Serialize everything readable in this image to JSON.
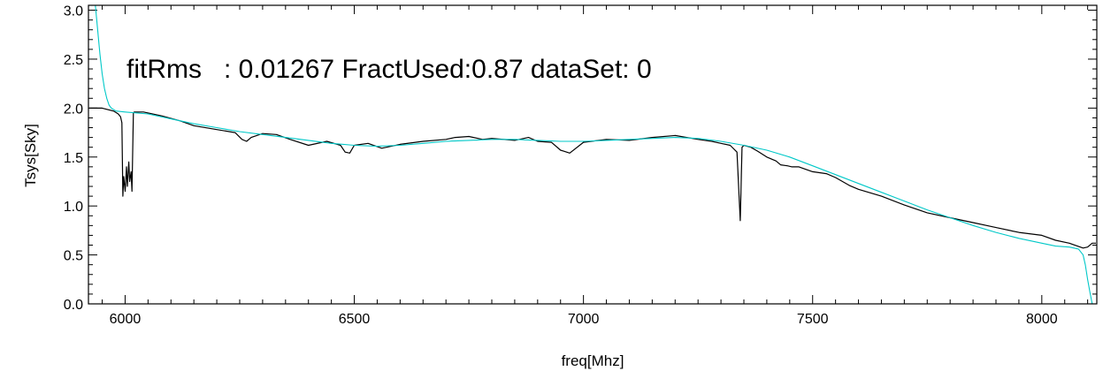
{
  "chart_data": {
    "type": "line",
    "title": "",
    "annotation": "fitRms   : 0.01267 FractUsed:0.87 dataSet: 0",
    "xlabel": "freq[Mhz]",
    "ylabel": "Tsys[Sky]",
    "xlim": [
      5920,
      8120
    ],
    "ylim": [
      0,
      3.05
    ],
    "xticks": [
      6000,
      6500,
      7000,
      7500,
      8000
    ],
    "xtick_labels": [
      "6000",
      "6500",
      "7000",
      "7500",
      "8000"
    ],
    "yticks": [
      0,
      0.5,
      1.0,
      1.5,
      2.0,
      2.5,
      3.0
    ],
    "ytick_labels": [
      "0.0",
      "0.5",
      "1.0",
      "1.5",
      "2.0",
      "2.5",
      "3.0"
    ],
    "grid": false,
    "series": [
      {
        "color": "#000000",
        "x": [
          5922,
          5950,
          5975,
          5985,
          5990,
          5993,
          5995,
          5997,
          6000,
          6003,
          6005,
          6008,
          6010,
          6013,
          6015,
          6018,
          6020,
          6040,
          6080,
          6120,
          6150,
          6200,
          6240,
          6255,
          6265,
          6275,
          6300,
          6330,
          6360,
          6400,
          6440,
          6470,
          6480,
          6490,
          6500,
          6530,
          6560,
          6600,
          6650,
          6700,
          6720,
          6750,
          6780,
          6800,
          6850,
          6880,
          6900,
          6930,
          6950,
          6970,
          7000,
          7050,
          7100,
          7150,
          7200,
          7250,
          7280,
          7300,
          7320,
          7335,
          7342,
          7346,
          7350,
          7365,
          7380,
          7400,
          7420,
          7430,
          7445,
          7455,
          7470,
          7500,
          7530,
          7550,
          7580,
          7600,
          7650,
          7700,
          7750,
          7800,
          7850,
          7900,
          7950,
          8000,
          8030,
          8060,
          8090,
          8100,
          8110,
          8118
        ],
        "y": [
          2.0,
          2.0,
          1.97,
          1.94,
          1.91,
          1.85,
          1.1,
          1.3,
          1.15,
          1.4,
          1.2,
          1.45,
          1.25,
          1.35,
          1.15,
          1.95,
          1.96,
          1.96,
          1.92,
          1.87,
          1.82,
          1.78,
          1.75,
          1.68,
          1.66,
          1.7,
          1.74,
          1.73,
          1.68,
          1.62,
          1.66,
          1.62,
          1.55,
          1.54,
          1.62,
          1.64,
          1.59,
          1.63,
          1.66,
          1.68,
          1.7,
          1.71,
          1.68,
          1.69,
          1.67,
          1.7,
          1.66,
          1.65,
          1.57,
          1.54,
          1.65,
          1.68,
          1.67,
          1.7,
          1.72,
          1.68,
          1.66,
          1.64,
          1.62,
          1.55,
          0.85,
          1.6,
          1.62,
          1.6,
          1.56,
          1.5,
          1.46,
          1.42,
          1.41,
          1.4,
          1.4,
          1.35,
          1.33,
          1.29,
          1.21,
          1.17,
          1.1,
          1.01,
          0.93,
          0.88,
          0.83,
          0.78,
          0.73,
          0.7,
          0.65,
          0.62,
          0.57,
          0.58,
          0.62,
          0.62
        ]
      },
      {
        "color": "#00c8c8",
        "x": [
          5935,
          5940,
          5945,
          5950,
          5955,
          5960,
          5965,
          5970,
          5980,
          6000,
          6050,
          6100,
          6150,
          6200,
          6250,
          6300,
          6350,
          6400,
          6450,
          6500,
          6550,
          6600,
          6650,
          6700,
          6750,
          6800,
          6850,
          6900,
          6950,
          7000,
          7050,
          7100,
          7150,
          7200,
          7250,
          7300,
          7350,
          7400,
          7450,
          7500,
          7550,
          7600,
          7650,
          7700,
          7750,
          7800,
          7850,
          7900,
          7950,
          8000,
          8030,
          8060,
          8080,
          8090,
          8095,
          8100,
          8105,
          8110
        ],
        "y": [
          3.05,
          2.8,
          2.55,
          2.35,
          2.2,
          2.1,
          2.03,
          2.0,
          1.97,
          1.96,
          1.94,
          1.89,
          1.84,
          1.8,
          1.76,
          1.73,
          1.7,
          1.67,
          1.64,
          1.62,
          1.61,
          1.62,
          1.64,
          1.66,
          1.67,
          1.68,
          1.68,
          1.67,
          1.66,
          1.66,
          1.67,
          1.68,
          1.69,
          1.7,
          1.69,
          1.66,
          1.62,
          1.57,
          1.5,
          1.41,
          1.32,
          1.23,
          1.14,
          1.05,
          0.96,
          0.88,
          0.8,
          0.73,
          0.67,
          0.62,
          0.59,
          0.58,
          0.56,
          0.5,
          0.4,
          0.25,
          0.12,
          0.0
        ]
      }
    ]
  }
}
